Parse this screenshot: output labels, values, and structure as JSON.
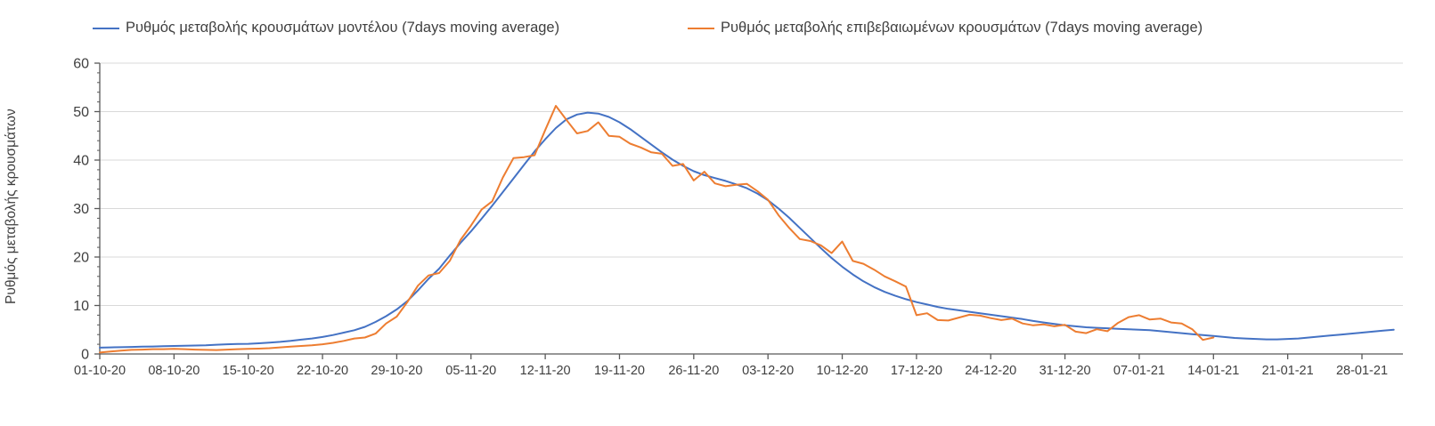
{
  "page": {
    "background": "#ffffff"
  },
  "chart_data": {
    "type": "line",
    "title": "",
    "xlabel": "",
    "ylabel": "Ρυθμός μεταβολής κρουσμάτων",
    "ylim": [
      0,
      60
    ],
    "y_ticks": [
      0,
      10,
      20,
      30,
      40,
      50,
      60
    ],
    "y_minor_tick_step": 2,
    "grid": "horizontal",
    "legend_position": "top",
    "colors": {
      "grid": "#d9d9d9",
      "axis": "#595959",
      "text": "#3f3f3f"
    },
    "x_tick_labels": [
      "01-10-20",
      "08-10-20",
      "15-10-20",
      "22-10-20",
      "29-10-20",
      "05-11-20",
      "12-11-20",
      "19-11-20",
      "26-11-20",
      "03-12-20",
      "10-12-20",
      "17-12-20",
      "24-12-20",
      "31-12-20",
      "07-01-21",
      "14-01-21",
      "21-01-21",
      "28-01-21"
    ],
    "x_dates": [
      "01-10-20",
      "02-10-20",
      "03-10-20",
      "04-10-20",
      "05-10-20",
      "06-10-20",
      "07-10-20",
      "08-10-20",
      "09-10-20",
      "10-10-20",
      "11-10-20",
      "12-10-20",
      "13-10-20",
      "14-10-20",
      "15-10-20",
      "16-10-20",
      "17-10-20",
      "18-10-20",
      "19-10-20",
      "20-10-20",
      "21-10-20",
      "22-10-20",
      "23-10-20",
      "24-10-20",
      "25-10-20",
      "26-10-20",
      "27-10-20",
      "28-10-20",
      "29-10-20",
      "30-10-20",
      "31-10-20",
      "01-11-20",
      "02-11-20",
      "03-11-20",
      "04-11-20",
      "05-11-20",
      "06-11-20",
      "07-11-20",
      "08-11-20",
      "09-11-20",
      "10-11-20",
      "11-11-20",
      "12-11-20",
      "13-11-20",
      "14-11-20",
      "15-11-20",
      "16-11-20",
      "17-11-20",
      "18-11-20",
      "19-11-20",
      "20-11-20",
      "21-11-20",
      "22-11-20",
      "23-11-20",
      "24-11-20",
      "25-11-20",
      "26-11-20",
      "27-11-20",
      "28-11-20",
      "29-11-20",
      "30-11-20",
      "01-12-20",
      "02-12-20",
      "03-12-20",
      "04-12-20",
      "05-12-20",
      "06-12-20",
      "07-12-20",
      "08-12-20",
      "09-12-20",
      "10-12-20",
      "11-12-20",
      "12-12-20",
      "13-12-20",
      "14-12-20",
      "15-12-20",
      "16-12-20",
      "17-12-20",
      "18-12-20",
      "19-12-20",
      "20-12-20",
      "21-12-20",
      "22-12-20",
      "23-12-20",
      "24-12-20",
      "25-12-20",
      "26-12-20",
      "27-12-20",
      "28-12-20",
      "29-12-20",
      "30-12-20",
      "31-12-20",
      "01-01-21",
      "02-01-21",
      "03-01-21",
      "04-01-21",
      "05-01-21",
      "06-01-21",
      "07-01-21",
      "08-01-21",
      "09-01-21",
      "10-01-21",
      "11-01-21",
      "12-01-21",
      "13-01-21",
      "14-01-21",
      "15-01-21",
      "16-01-21",
      "17-01-21",
      "18-01-21",
      "19-01-21",
      "20-01-21",
      "21-01-21",
      "22-01-21",
      "23-01-21",
      "24-01-21",
      "25-01-21",
      "26-01-21",
      "27-01-21",
      "28-01-21",
      "29-01-21",
      "30-01-21",
      "31-01-21"
    ],
    "series": [
      {
        "name": "Ρυθμός μεταβολής κρουσμάτων μοντέλου (7days moving average)",
        "color": "#4472C4",
        "values": [
          1.3,
          1.35,
          1.4,
          1.45,
          1.5,
          1.55,
          1.6,
          1.65,
          1.7,
          1.75,
          1.8,
          1.9,
          2.0,
          2.05,
          2.1,
          2.2,
          2.35,
          2.5,
          2.7,
          2.95,
          3.2,
          3.5,
          3.9,
          4.4,
          4.9,
          5.6,
          6.6,
          7.8,
          9.2,
          10.9,
          13.1,
          15.5,
          17.6,
          20.3,
          22.9,
          25.3,
          27.9,
          30.6,
          33.4,
          36.2,
          39.0,
          41.8,
          44.3,
          46.6,
          48.4,
          49.4,
          49.8,
          49.6,
          48.9,
          47.8,
          46.4,
          44.8,
          43.2,
          41.6,
          40.1,
          38.8,
          37.7,
          36.9,
          36.3,
          35.7,
          35.0,
          34.2,
          33.1,
          31.7,
          30.0,
          28.1,
          26.0,
          23.9,
          21.8,
          19.8,
          18.0,
          16.4,
          15.0,
          13.8,
          12.8,
          12.0,
          11.3,
          10.7,
          10.2,
          9.7,
          9.3,
          9.0,
          8.7,
          8.4,
          8.1,
          7.8,
          7.5,
          7.2,
          6.8,
          6.5,
          6.2,
          5.9,
          5.7,
          5.5,
          5.4,
          5.3,
          5.2,
          5.1,
          5.0,
          4.9,
          4.7,
          4.5,
          4.3,
          4.1,
          3.9,
          3.7,
          3.5,
          3.3,
          3.2,
          3.1,
          3.0,
          3.0,
          3.1,
          3.2,
          3.4,
          3.6,
          3.8,
          4.0,
          4.2,
          4.4,
          4.6,
          4.8,
          5.0
        ]
      },
      {
        "name": "Ρυθμός μεταβολής επιβεβαιωμένων κρουσμάτων (7days moving average)",
        "color": "#ED7D31",
        "values": [
          0.3,
          0.5,
          0.7,
          0.85,
          0.9,
          1.0,
          1.0,
          1.05,
          1.0,
          0.9,
          0.85,
          0.8,
          0.9,
          1.0,
          1.05,
          1.1,
          1.2,
          1.35,
          1.5,
          1.65,
          1.8,
          2.0,
          2.3,
          2.7,
          3.2,
          3.4,
          4.2,
          6.3,
          7.7,
          10.7,
          14.1,
          16.2,
          16.7,
          19.2,
          23.5,
          26.5,
          29.8,
          31.5,
          36.4,
          40.4,
          40.6,
          41.0,
          46.2,
          51.2,
          48.3,
          45.5,
          46.0,
          47.8,
          45.0,
          44.8,
          43.4,
          42.6,
          41.6,
          41.3,
          38.8,
          39.2,
          35.8,
          37.6,
          35.2,
          34.6,
          34.9,
          35.1,
          33.6,
          31.8,
          28.6,
          26.0,
          23.7,
          23.3,
          22.4,
          20.8,
          23.2,
          19.2,
          18.6,
          17.4,
          16.0,
          15.0,
          13.9,
          8.0,
          8.4,
          7.0,
          6.9,
          7.5,
          8.1,
          7.9,
          7.4,
          7.0,
          7.3,
          6.3,
          5.9,
          6.1,
          5.7,
          6.0,
          4.6,
          4.3,
          5.1,
          4.7,
          6.4,
          7.6,
          8.0,
          7.1,
          7.3,
          6.5,
          6.3,
          5.1,
          2.9,
          3.4
        ]
      }
    ]
  }
}
